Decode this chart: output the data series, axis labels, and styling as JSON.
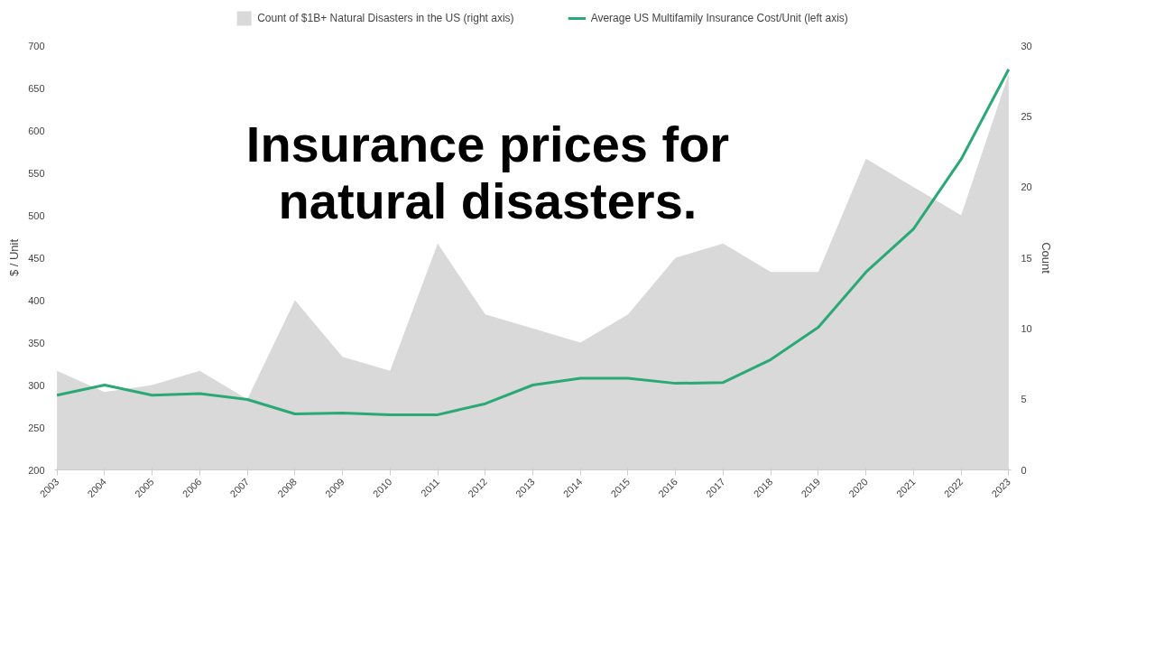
{
  "chart_data": {
    "type": "line",
    "categories": [
      "2003",
      "2004",
      "2005",
      "2006",
      "2007",
      "2008",
      "2009",
      "2010",
      "2011",
      "2012",
      "2013",
      "2014",
      "2015",
      "2016",
      "2017",
      "2018",
      "2019",
      "2020",
      "2021",
      "2022",
      "2023"
    ],
    "series": [
      {
        "name": "Count of $1B+ Natural Disasters in the US (right axis)",
        "type": "area",
        "axis": "y2",
        "color": "#d9d9d9",
        "values": [
          7,
          5.5,
          6,
          7,
          5,
          12,
          8,
          7,
          16,
          11,
          10,
          9,
          11,
          15,
          16,
          14,
          14,
          22,
          20,
          18,
          28
        ]
      },
      {
        "name": "Average US Multifamily Insurance Cost/Unit (left axis)",
        "color": "#2aa876",
        "values": [
          288,
          300,
          288,
          290,
          283,
          266,
          267,
          265,
          265,
          278,
          300,
          308,
          308,
          302,
          303,
          330,
          368,
          433,
          484,
          566,
          672
        ]
      }
    ],
    "ylabel": "$ / Unit",
    "y2label": "Count",
    "ylim": [
      200,
      700
    ],
    "yticks": [
      200,
      250,
      300,
      350,
      400,
      450,
      500,
      550,
      600,
      650,
      700
    ],
    "y2lim": [
      0,
      30
    ],
    "y2ticks": [
      0,
      5,
      10,
      15,
      20,
      25,
      30
    ],
    "legend": "top",
    "grid": false,
    "annotations": [
      "Insurance prices for\nnatural disasters."
    ]
  }
}
